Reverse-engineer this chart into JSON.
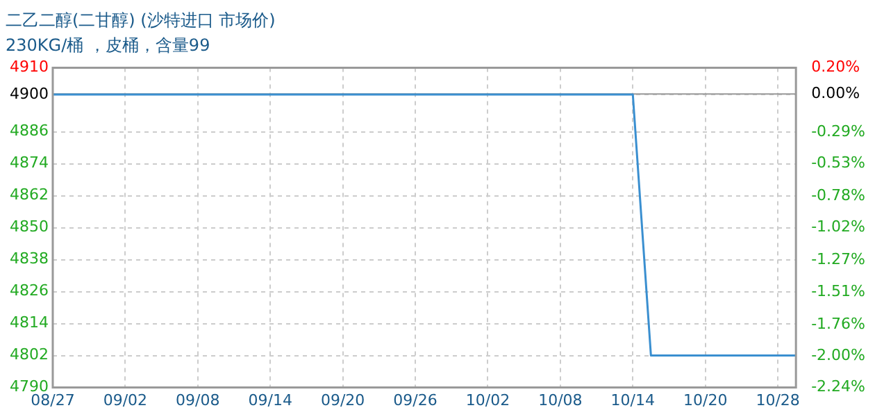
{
  "chart_data": {
    "type": "line",
    "title": "二乙二醇(二甘醇) (沙特进口 市场价)",
    "subtitle": "230KG/桶 ，皮桶，含量99",
    "categories": [
      "08/27",
      null,
      null,
      null,
      "09/02",
      null,
      null,
      null,
      "09/08",
      null,
      null,
      null,
      "09/14",
      null,
      null,
      null,
      "09/20",
      null,
      null,
      null,
      "09/26",
      null,
      null,
      null,
      "10/02",
      null,
      null,
      null,
      "10/08",
      null,
      null,
      null,
      "10/14",
      null,
      null,
      null,
      "10/20",
      null,
      null,
      null,
      "10/28",
      null
    ],
    "series": [
      {
        "color": "#3a8fd0",
        "values": [
          4900,
          4900,
          4900,
          4900,
          4900,
          4900,
          4900,
          4900,
          4900,
          4900,
          4900,
          4900,
          4900,
          4900,
          4900,
          4900,
          4900,
          4900,
          4900,
          4900,
          4900,
          4900,
          4900,
          4900,
          4900,
          4900,
          4900,
          4900,
          4900,
          4900,
          4900,
          4900,
          4900,
          4802,
          4802,
          4802,
          4802,
          4802,
          4802,
          4802,
          4802,
          4802
        ]
      }
    ],
    "ylim": [
      4790,
      4910
    ],
    "yticks": [
      4790,
      4802,
      4814,
      4826,
      4838,
      4850,
      4862,
      4874,
      4886,
      4900,
      4910
    ],
    "y2lim": [
      -2.24,
      0.2
    ],
    "y2ticks": [
      {
        "value": -2.24,
        "label": "-2.24%"
      },
      {
        "value": -2.0,
        "label": "-2.00%"
      },
      {
        "value": -1.76,
        "label": "-1.76%"
      },
      {
        "value": -1.51,
        "label": "-1.51%"
      },
      {
        "value": -1.27,
        "label": "-1.27%"
      },
      {
        "value": -1.02,
        "label": "-1.02%"
      },
      {
        "value": -0.78,
        "label": "-0.78%"
      },
      {
        "value": -0.53,
        "label": "-0.53%"
      },
      {
        "value": -0.29,
        "label": "-0.29%"
      },
      {
        "value": 0,
        "label": "0.00%"
      },
      {
        "value": 0.2,
        "label": "0.20%"
      }
    ],
    "ref_lines": [
      {
        "axis": "y2",
        "value": 0,
        "color": "#999999",
        "line_style": "solid"
      }
    ],
    "grid": true,
    "marker": "none",
    "line_style": "solid"
  }
}
